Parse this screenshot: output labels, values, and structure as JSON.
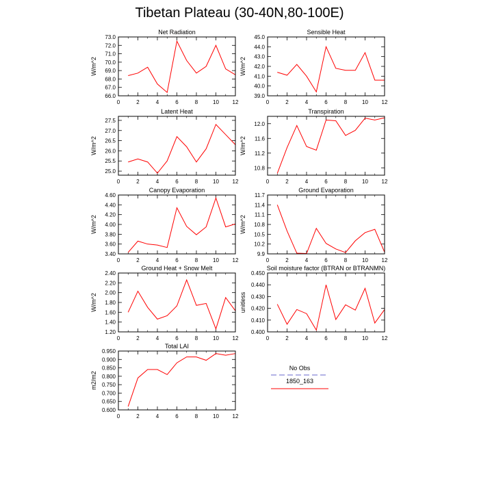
{
  "page": {
    "title": "Tibetan Plateau (30-40N,80-100E)"
  },
  "legend": {
    "items": [
      {
        "label": "No Obs",
        "color": "#9999dd",
        "style": "dashed"
      },
      {
        "label": "1850_163",
        "color": "#ff0000",
        "style": "solid"
      }
    ]
  },
  "chart_data": [
    {
      "type": "line",
      "title": "Net Radiation",
      "ylabel": "W/m^2",
      "xlim": [
        0,
        12
      ],
      "ylim": [
        66.0,
        73.0
      ],
      "xticks": [
        0,
        2,
        4,
        6,
        8,
        10,
        12
      ],
      "yticks": [
        "66.0",
        "67.0",
        "68.0",
        "69.0",
        "70.0",
        "71.0",
        "72.0",
        "73.0"
      ],
      "series": [
        {
          "name": "1850_163",
          "color": "#ff0000",
          "x": [
            1,
            2,
            3,
            4,
            5,
            6,
            7,
            8,
            9,
            10,
            11,
            12
          ],
          "values": [
            68.4,
            68.7,
            69.4,
            67.4,
            66.4,
            72.5,
            70.2,
            68.7,
            69.5,
            72.0,
            69.2,
            68.5
          ]
        }
      ]
    },
    {
      "type": "line",
      "title": "Sensible Heat",
      "ylabel": "W/m^2",
      "xlim": [
        0,
        12
      ],
      "ylim": [
        39.0,
        45.0
      ],
      "xticks": [
        0,
        2,
        4,
        6,
        8,
        10,
        12
      ],
      "yticks": [
        "39.0",
        "40.0",
        "41.0",
        "42.0",
        "43.0",
        "44.0",
        "45.0"
      ],
      "series": [
        {
          "name": "1850_163",
          "color": "#ff0000",
          "x": [
            1,
            2,
            3,
            4,
            5,
            6,
            7,
            8,
            9,
            10,
            11,
            12
          ],
          "values": [
            41.4,
            41.1,
            42.2,
            41.0,
            39.4,
            44.0,
            41.8,
            41.6,
            41.6,
            43.4,
            40.6,
            40.6
          ]
        }
      ]
    },
    {
      "type": "line",
      "title": "Latent Heat",
      "ylabel": "W/m^2",
      "xlim": [
        0,
        12
      ],
      "ylim": [
        24.8,
        27.7
      ],
      "xticks": [
        0,
        2,
        4,
        6,
        8,
        10,
        12
      ],
      "yticks": [
        "25.0",
        "25.5",
        "26.0",
        "26.5",
        "27.0",
        "27.5"
      ],
      "series": [
        {
          "name": "1850_163",
          "color": "#ff0000",
          "x": [
            1,
            2,
            3,
            4,
            5,
            6,
            7,
            8,
            9,
            10,
            11,
            12
          ],
          "values": [
            25.45,
            25.6,
            25.45,
            24.9,
            25.5,
            26.7,
            26.2,
            25.45,
            26.1,
            27.3,
            26.8,
            26.3
          ]
        }
      ]
    },
    {
      "type": "line",
      "title": "Transpiration",
      "ylabel": "W/m^2",
      "xlim": [
        0,
        12
      ],
      "ylim": [
        10.6,
        12.2
      ],
      "xticks": [
        0,
        2,
        4,
        6,
        8,
        10,
        12
      ],
      "yticks": [
        "10.8",
        "11.2",
        "11.6",
        "12.0"
      ],
      "series": [
        {
          "name": "1850_163",
          "color": "#ff0000",
          "x": [
            1,
            2,
            3,
            4,
            5,
            6,
            7,
            8,
            9,
            10,
            11,
            12
          ],
          "values": [
            10.65,
            11.35,
            11.95,
            11.38,
            11.28,
            12.1,
            12.08,
            11.68,
            11.82,
            12.15,
            12.1,
            12.16
          ]
        }
      ]
    },
    {
      "type": "line",
      "title": "Canopy Evaporation",
      "ylabel": "W/m^2",
      "xlim": [
        0,
        12
      ],
      "ylim": [
        3.4,
        4.6
      ],
      "xticks": [
        0,
        2,
        4,
        6,
        8,
        10,
        12
      ],
      "yticks": [
        "3.40",
        "3.60",
        "3.80",
        "4.00",
        "4.20",
        "4.40",
        "4.60"
      ],
      "series": [
        {
          "name": "1850_163",
          "color": "#ff0000",
          "x": [
            1,
            2,
            3,
            4,
            5,
            6,
            7,
            8,
            9,
            10,
            11,
            12
          ],
          "values": [
            3.43,
            3.66,
            3.6,
            3.58,
            3.53,
            4.34,
            3.96,
            3.79,
            3.95,
            4.54,
            3.95,
            4.01
          ]
        }
      ]
    },
    {
      "type": "line",
      "title": "Ground Evaporation",
      "ylabel": "W/m^2",
      "xlim": [
        0,
        12
      ],
      "ylim": [
        9.9,
        11.7
      ],
      "xticks": [
        0,
        2,
        4,
        6,
        8,
        10,
        12
      ],
      "yticks": [
        "9.9",
        "10.2",
        "10.5",
        "10.8",
        "11.1",
        "11.4",
        "11.7"
      ],
      "series": [
        {
          "name": "1850_163",
          "color": "#ff0000",
          "x": [
            1,
            2,
            3,
            4,
            5,
            6,
            7,
            8,
            9,
            10,
            11,
            12
          ],
          "values": [
            11.4,
            10.6,
            9.92,
            9.91,
            10.68,
            10.22,
            10.05,
            9.94,
            10.3,
            10.55,
            10.65,
            9.95
          ]
        }
      ]
    },
    {
      "type": "line",
      "title": "Ground Heat + Snow Melt",
      "ylabel": "W/m^2",
      "xlim": [
        0,
        12
      ],
      "ylim": [
        1.2,
        2.4
      ],
      "xticks": [
        0,
        2,
        4,
        6,
        8,
        10,
        12
      ],
      "yticks": [
        "1.20",
        "1.40",
        "1.60",
        "1.80",
        "2.00",
        "2.20",
        "2.40"
      ],
      "series": [
        {
          "name": "1850_163",
          "color": "#ff0000",
          "x": [
            1,
            2,
            3,
            4,
            5,
            6,
            7,
            8,
            9,
            10,
            11,
            12
          ],
          "values": [
            1.6,
            2.03,
            1.7,
            1.46,
            1.53,
            1.73,
            2.26,
            1.74,
            1.78,
            1.26,
            1.9,
            1.63
          ]
        }
      ]
    },
    {
      "type": "line",
      "title": "Soil moisture factor (BTRAN or BTRANMN)",
      "ylabel": "unitless",
      "xlim": [
        0,
        12
      ],
      "ylim": [
        0.4,
        0.45
      ],
      "xticks": [
        0,
        2,
        4,
        6,
        8,
        10,
        12
      ],
      "yticks": [
        "0.400",
        "0.410",
        "0.420",
        "0.430",
        "0.440",
        "0.450"
      ],
      "series": [
        {
          "name": "1850_163",
          "color": "#ff0000",
          "x": [
            1,
            2,
            3,
            4,
            5,
            6,
            7,
            8,
            9,
            10,
            11,
            12
          ],
          "values": [
            0.4235,
            0.4065,
            0.419,
            0.4155,
            0.4015,
            0.44,
            0.4105,
            0.423,
            0.4185,
            0.437,
            0.4075,
            0.419
          ]
        }
      ]
    },
    {
      "type": "line",
      "title": "Total LAI",
      "ylabel": "m2/m2",
      "xlim": [
        0,
        12
      ],
      "ylim": [
        0.6,
        0.95
      ],
      "xticks": [
        0,
        2,
        4,
        6,
        8,
        10,
        12
      ],
      "yticks": [
        "0.600",
        "0.650",
        "0.700",
        "0.750",
        "0.800",
        "0.850",
        "0.900",
        "0.950"
      ],
      "series": [
        {
          "name": "1850_163",
          "color": "#ff0000",
          "x": [
            1,
            2,
            3,
            4,
            5,
            6,
            7,
            8,
            9,
            10,
            11,
            12
          ],
          "values": [
            0.62,
            0.79,
            0.84,
            0.84,
            0.81,
            0.88,
            0.915,
            0.915,
            0.895,
            0.935,
            0.925,
            0.935
          ]
        }
      ]
    }
  ]
}
